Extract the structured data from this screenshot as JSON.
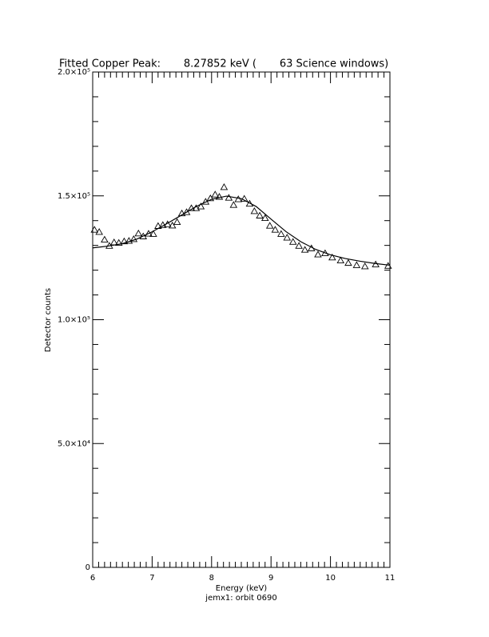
{
  "chart_data": {
    "type": "scatter",
    "title": "Fitted Copper Peak:       8.27852 keV (       63 Science windows)",
    "x_label": "Energy (keV)",
    "subtitle": "jemx1: orbit 0690",
    "y_label": "Detector counts",
    "xlim": [
      6,
      11
    ],
    "xticks": [
      6,
      7,
      8,
      9,
      10,
      11
    ],
    "ylim": [
      0,
      200000
    ],
    "yticks": [
      {
        "value": 0,
        "label": "0"
      },
      {
        "value": 50000,
        "label": "5.0×10⁴"
      },
      {
        "value": 100000,
        "label": "1.0×10⁵"
      },
      {
        "value": 150000,
        "label": "1.5×10⁵"
      },
      {
        "value": 200000,
        "label": "2.0×10⁵"
      }
    ],
    "color": "#000000",
    "points": {
      "x": [
        6.03,
        6.11,
        6.2,
        6.28,
        6.36,
        6.44,
        6.53,
        6.61,
        6.69,
        6.77,
        6.85,
        6.94,
        7.02,
        7.1,
        7.18,
        7.26,
        7.34,
        7.42,
        7.5,
        7.58,
        7.66,
        7.74,
        7.82,
        7.9,
        7.98,
        8.06,
        8.13,
        8.21,
        8.29,
        8.37,
        8.45,
        8.55,
        8.64,
        8.72,
        8.81,
        8.9,
        8.98,
        9.07,
        9.17,
        9.27,
        9.37,
        9.47,
        9.57,
        9.68,
        9.79,
        9.91,
        10.03,
        10.17,
        10.3,
        10.44,
        10.58,
        10.76,
        10.97
      ],
      "values": [
        136300,
        135400,
        132300,
        129800,
        131200,
        131000,
        131600,
        131800,
        132500,
        134800,
        133600,
        134700,
        134600,
        137800,
        138200,
        138500,
        138000,
        139400,
        142900,
        143400,
        145000,
        145000,
        145700,
        147600,
        149000,
        150500,
        149600,
        153500,
        149200,
        146300,
        148600,
        148800,
        146800,
        143800,
        142000,
        141000,
        137900,
        136300,
        134600,
        133100,
        131400,
        129800,
        128200,
        128800,
        126300,
        126800,
        125100,
        123900,
        122900,
        122000,
        121500,
        122300,
        121700
      ]
    },
    "fit": {
      "x": [
        6.0,
        6.25,
        6.5,
        6.75,
        7.0,
        7.25,
        7.5,
        7.75,
        8.0,
        8.25,
        8.5,
        8.75,
        9.0,
        9.25,
        9.5,
        9.75,
        10.0,
        10.25,
        10.5,
        10.75,
        11.0
      ],
      "values": [
        129000,
        129700,
        130700,
        132600,
        135500,
        138800,
        142300,
        145800,
        148600,
        149900,
        148900,
        145700,
        140600,
        135600,
        131500,
        128400,
        126200,
        124700,
        123600,
        122700,
        122000
      ]
    }
  }
}
